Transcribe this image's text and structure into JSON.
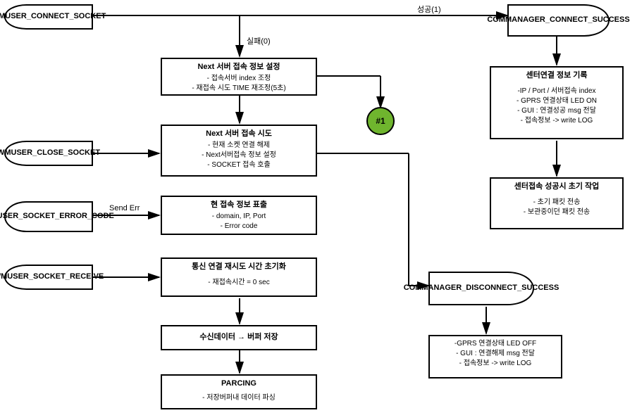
{
  "diagram": {
    "type": "flowchart",
    "background_color": "#ffffff",
    "stroke_color": "#000000",
    "stroke_width": 2,
    "font_family": "Arial",
    "title_fontsize": 11,
    "detail_fontsize": 10,
    "label_fontsize": 11,
    "ref_circle": {
      "label": "#1",
      "fill": "#6fb52e",
      "diameter": 40
    },
    "terminals": {
      "wmuser_connect_socket": {
        "text": "WMUSER_CONNECT_SOCKET"
      },
      "wmuser_close_socket": {
        "text": "WMUSER_CLOSE_SOCKET"
      },
      "wmuser_socket_error_code": {
        "text": "WMUSER_SOCKET_ERROR_CODE"
      },
      "wmuser_socket_receive": {
        "text": "WMUSER_SOCKET_RECEIVE"
      },
      "commanager_connect_success": {
        "text": "COMMANAGER_CONNECT_SUCCESS"
      },
      "commanager_disconnect_success": {
        "text": "COMMANAGER_DISCONNECT_SUCCESS"
      }
    },
    "processes": {
      "next_server_info": {
        "title": "Next 서버 접속 정보 설정",
        "details": [
          "- 접속서버 index 조정",
          "- 재접속 시도 TIME 재조정(5초)"
        ]
      },
      "next_server_try": {
        "title": "Next 서버 접속 시도",
        "details": [
          "- 현재 소켓 연결 해제",
          "- Next서버접속 정보 설정",
          "- SOCKET 접속 호출"
        ]
      },
      "current_info": {
        "title": "현 접속 정보 표출",
        "details": [
          "- domain, IP, Port",
          "- Error code"
        ]
      },
      "retry_time_init": {
        "title": "통신 연결 재시도 시간 초기화",
        "details": [
          "- 재접속시간  = 0 sec"
        ]
      },
      "recv_buffer": {
        "title": "수신데이터 → 버퍼 저장",
        "details": []
      },
      "parsing": {
        "title": "PARCING",
        "details": [
          "- 저장버퍼내 데이터 파싱"
        ]
      },
      "center_conn_record": {
        "title": "센터연결 정보 기록",
        "details": [
          "-IP / Port / 서버접속 index",
          "- GPRS 연결상태 LED ON",
          "- GUI : 연결성공 msg 전달",
          "- 접속정보 -> write LOG"
        ]
      },
      "center_success_init": {
        "title": "센터접속 성공시 초기 작업",
        "details": [
          "- 초기 패킷 전송",
          "- 보관중이던 패킷 전송"
        ]
      },
      "disconnect_info": {
        "title": "",
        "details": [
          "-GPRS 연결상태 LED OFF",
          "-  GUI : 연결해제 msg 전달",
          "- 접속정보 -> write LOG"
        ]
      }
    },
    "edge_labels": {
      "success": "성공(1)",
      "fail": "실패(0)",
      "send_err": "Send Err"
    }
  }
}
